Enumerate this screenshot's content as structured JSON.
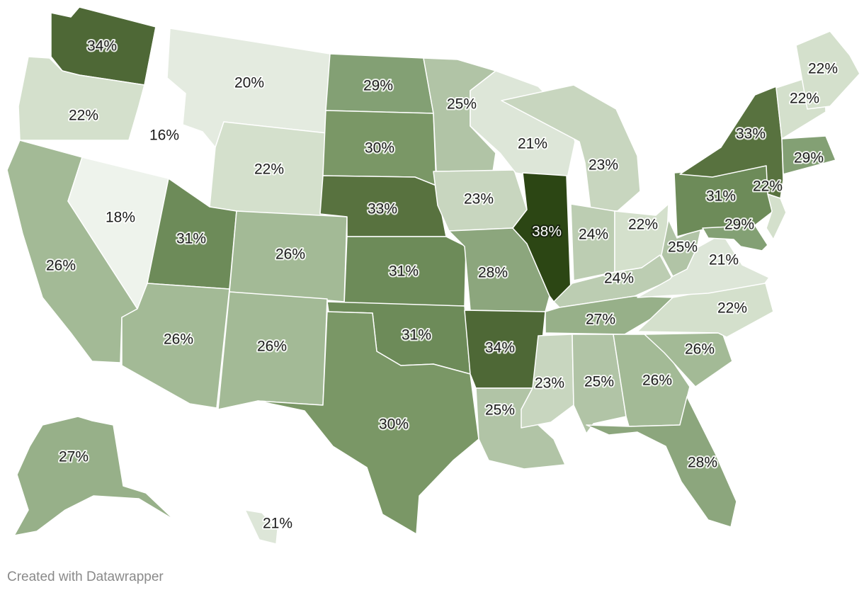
{
  "map": {
    "colors": {
      "16": "#ffffff",
      "18": "#eef3ec",
      "20": "#e4ebe0",
      "21": "#dde6d8",
      "22": "#d4e0cc",
      "23": "#c8d6bf",
      "24": "#bccdb2",
      "25": "#b1c4a6",
      "26": "#a3ba96",
      "27": "#97b089",
      "28": "#8ca67d",
      "29": "#83a074",
      "30": "#7a9766",
      "31": "#6d8b59",
      "33": "#58723f",
      "34": "#4e6836",
      "38": "#2c4614"
    },
    "states": [
      {
        "id": "WA",
        "value": "34%"
      },
      {
        "id": "OR",
        "value": "22%"
      },
      {
        "id": "CA",
        "value": "26%"
      },
      {
        "id": "ID",
        "value": "16%"
      },
      {
        "id": "NV",
        "value": "18%"
      },
      {
        "id": "MT",
        "value": "20%"
      },
      {
        "id": "WY",
        "value": "22%"
      },
      {
        "id": "UT",
        "value": "31%"
      },
      {
        "id": "AZ",
        "value": "26%"
      },
      {
        "id": "CO",
        "value": "26%"
      },
      {
        "id": "NM",
        "value": "26%"
      },
      {
        "id": "ND",
        "value": "29%"
      },
      {
        "id": "SD",
        "value": "30%"
      },
      {
        "id": "NE",
        "value": "33%"
      },
      {
        "id": "KS",
        "value": "31%"
      },
      {
        "id": "OK",
        "value": "31%"
      },
      {
        "id": "TX",
        "value": "30%"
      },
      {
        "id": "MN",
        "value": "25%"
      },
      {
        "id": "IA",
        "value": "23%"
      },
      {
        "id": "MO",
        "value": "28%"
      },
      {
        "id": "AR",
        "value": "34%"
      },
      {
        "id": "LA",
        "value": "25%"
      },
      {
        "id": "WI",
        "value": "21%"
      },
      {
        "id": "IL",
        "value": "38%"
      },
      {
        "id": "MI",
        "value": "23%"
      },
      {
        "id": "IN",
        "value": "24%"
      },
      {
        "id": "OH",
        "value": "22%"
      },
      {
        "id": "KY",
        "value": "24%"
      },
      {
        "id": "TN",
        "value": "27%"
      },
      {
        "id": "MS",
        "value": "23%"
      },
      {
        "id": "AL",
        "value": "25%"
      },
      {
        "id": "GA",
        "value": "26%"
      },
      {
        "id": "FL",
        "value": "28%"
      },
      {
        "id": "SC",
        "value": "26%"
      },
      {
        "id": "NC",
        "value": "22%"
      },
      {
        "id": "VA",
        "value": "21%"
      },
      {
        "id": "WV",
        "value": "25%"
      },
      {
        "id": "PA",
        "value": "31%"
      },
      {
        "id": "NY",
        "value": "33%"
      },
      {
        "id": "VT",
        "value": "22%"
      },
      {
        "id": "MA",
        "value": "29%"
      },
      {
        "id": "MD",
        "value": "29%"
      },
      {
        "id": "NJ",
        "value": "22%"
      },
      {
        "id": "ME",
        "value": "22%"
      },
      {
        "id": "AK",
        "value": "27%"
      },
      {
        "id": "HI",
        "value": "21%"
      }
    ]
  },
  "footer": {
    "credit": "Created with Datawrapper"
  }
}
